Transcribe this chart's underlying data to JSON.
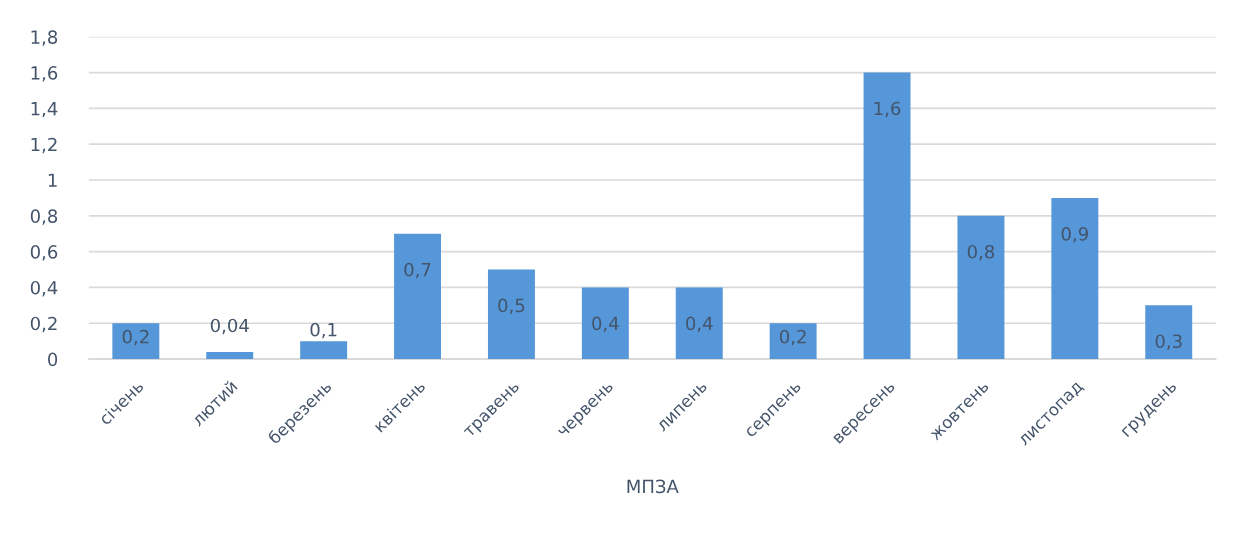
{
  "chart_data": {
    "type": "bar",
    "xlabel": "МПЗА",
    "categories": [
      "січень",
      "лютий",
      "березень",
      "квітень",
      "травень",
      "червень",
      "липень",
      "серпень",
      "вересень",
      "жовтень",
      "листопад",
      "грудень"
    ],
    "values": [
      0.2,
      0.04,
      0.1,
      0.7,
      0.5,
      0.4,
      0.4,
      0.2,
      1.6,
      0.8,
      0.9,
      0.3
    ],
    "color": "#5597d8",
    "value_labels": [
      "0,2",
      "0,04",
      "0,1",
      "0,7",
      "0,5",
      "0,4",
      "0,4",
      "0,2",
      "1,6",
      "0,8",
      "0,9",
      "0,3"
    ],
    "ylim": [
      0,
      1.8
    ],
    "yticks": [
      0,
      {
        "value": 0.2,
        "label": "0,2"
      },
      {
        "value": 0.4,
        "label": "0,4"
      },
      {
        "value": 0.6,
        "label": "0,6"
      },
      {
        "value": 0.8,
        "label": "0,8"
      },
      1,
      {
        "value": 1.2,
        "label": "1,2"
      },
      {
        "value": 1.4,
        "label": "1,4"
      },
      {
        "value": 1.6,
        "label": "1,6"
      },
      {
        "value": 1.8,
        "label": "1,8"
      }
    ],
    "grid": "y"
  }
}
